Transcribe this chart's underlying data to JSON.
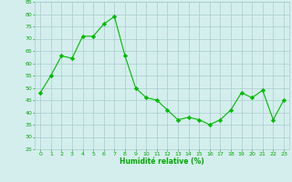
{
  "x": [
    0,
    1,
    2,
    3,
    4,
    5,
    6,
    7,
    8,
    9,
    10,
    11,
    12,
    13,
    14,
    15,
    16,
    17,
    18,
    19,
    20,
    21,
    22,
    23
  ],
  "y": [
    48,
    55,
    63,
    62,
    71,
    71,
    76,
    79,
    63,
    50,
    46,
    45,
    41,
    37,
    38,
    37,
    35,
    37,
    41,
    48,
    46,
    49,
    37,
    45
  ],
  "line_color": "#00bb00",
  "marker": "D",
  "marker_size": 2.2,
  "bg_color": "#d4eeee",
  "grid_color": "#aacccc",
  "xlabel": "Humidité relative (%)",
  "xlabel_color": "#00aa00",
  "tick_color": "#00aa00",
  "ylim": [
    25,
    85
  ],
  "xlim": [
    -0.5,
    23.5
  ],
  "yticks": [
    25,
    30,
    35,
    40,
    45,
    50,
    55,
    60,
    65,
    70,
    75,
    80,
    85
  ],
  "xticks": [
    0,
    1,
    2,
    3,
    4,
    5,
    6,
    7,
    8,
    9,
    10,
    11,
    12,
    13,
    14,
    15,
    16,
    17,
    18,
    19,
    20,
    21,
    22,
    23
  ]
}
